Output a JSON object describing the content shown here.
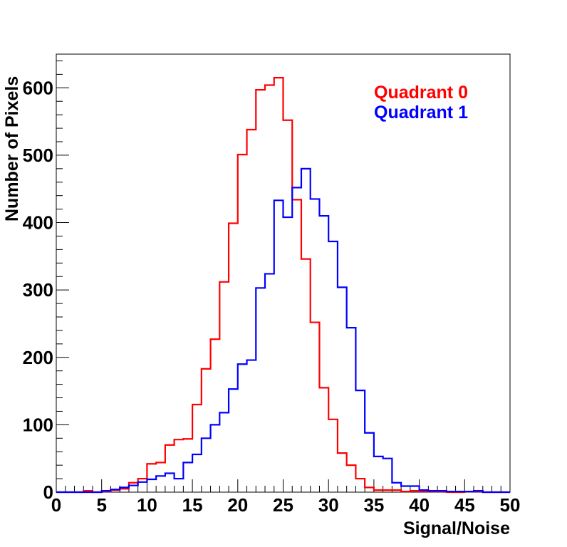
{
  "chart_data": {
    "type": "histogram",
    "title": "",
    "xlabel": "Signal/Noise",
    "ylabel": "Number of Pixels",
    "xlim": [
      0,
      50
    ],
    "ylim": [
      0,
      650
    ],
    "bin_width": 1,
    "x_ticks": [
      "0",
      "5",
      "10",
      "15",
      "20",
      "25",
      "30",
      "35",
      "40",
      "45",
      "50"
    ],
    "y_ticks": [
      "0",
      "100",
      "200",
      "300",
      "400",
      "500",
      "600"
    ],
    "legend_position": "top-right",
    "series": [
      {
        "name": "Quadrant 0",
        "color": "#ff0000",
        "values": [
          0,
          0,
          0,
          2,
          0,
          1,
          3,
          5,
          14,
          20,
          42,
          44,
          70,
          78,
          79,
          130,
          183,
          227,
          312,
          399,
          501,
          538,
          597,
          604,
          615,
          552,
          434,
          346,
          252,
          155,
          108,
          58,
          40,
          20,
          7,
          3,
          3,
          3,
          1,
          2,
          1,
          1,
          1,
          0,
          0,
          1,
          1,
          0,
          0,
          0
        ]
      },
      {
        "name": "Quadrant 1",
        "color": "#0000ff",
        "values": [
          0,
          0,
          0,
          0,
          0,
          2,
          4,
          7,
          10,
          15,
          19,
          24,
          28,
          20,
          44,
          56,
          80,
          100,
          118,
          153,
          190,
          196,
          303,
          324,
          433,
          408,
          452,
          480,
          435,
          410,
          372,
          304,
          244,
          151,
          88,
          53,
          50,
          14,
          9,
          9,
          3,
          2,
          2,
          1,
          1,
          1,
          2,
          0,
          0,
          0
        ]
      }
    ]
  }
}
